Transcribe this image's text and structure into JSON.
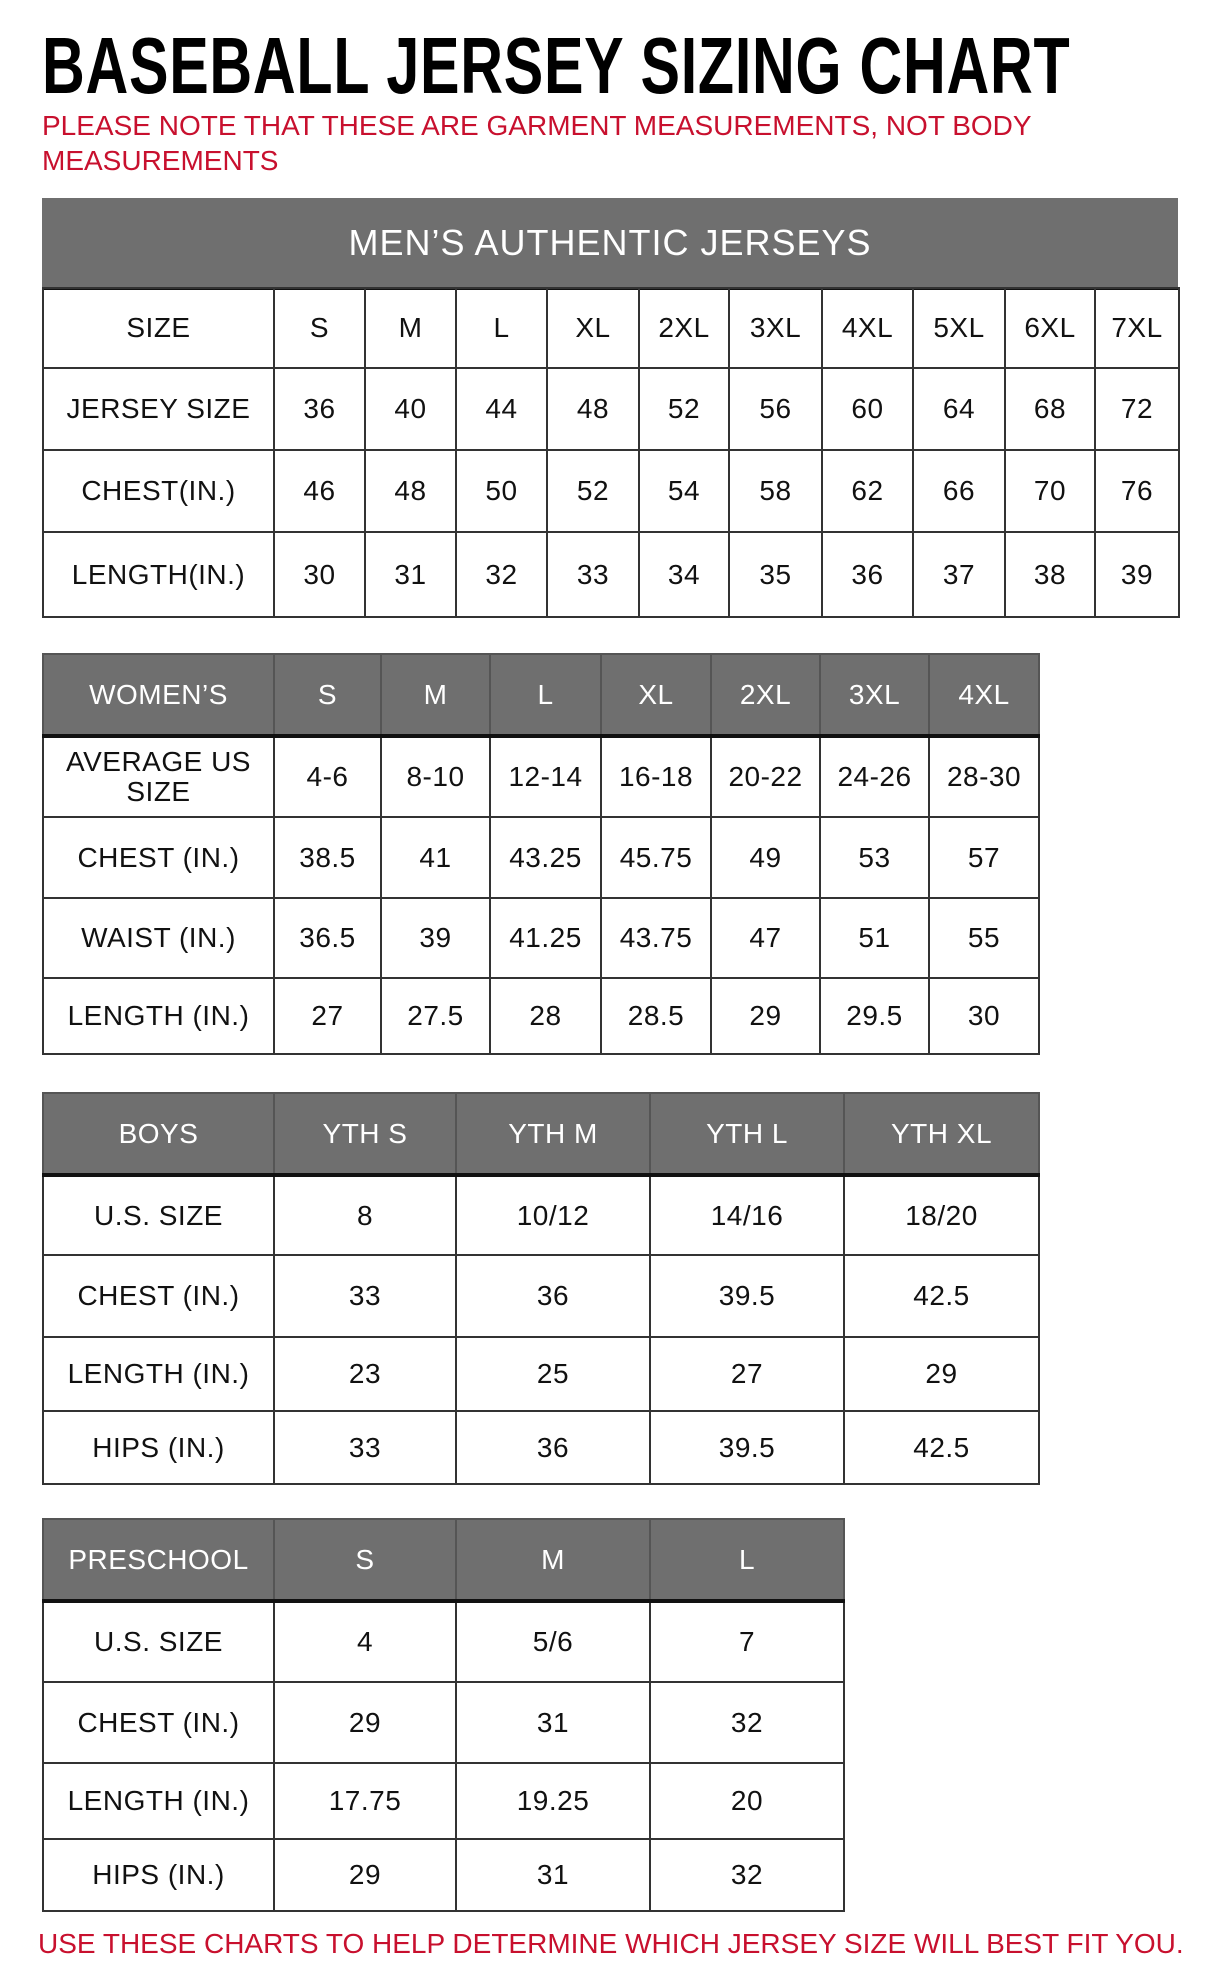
{
  "title": "BASEBALL JERSEY SIZING CHART",
  "note": "PLEASE NOTE THAT THESE ARE GARMENT MEASUREMENTS, NOT BODY MEASUREMENTS",
  "footer": "USE THESE CHARTS TO HELP DETERMINE WHICH JERSEY SIZE WILL BEST FIT YOU.",
  "colors": {
    "header_bg": "#6f6f6f",
    "note_red": "#c8102e"
  },
  "tables": [
    {
      "caption": "MEN’S AUTHENTIC JERSEYS",
      "header_shaded": false,
      "header": [
        "SIZE",
        "S",
        "M",
        "L",
        "XL",
        "2XL",
        "3XL",
        "4XL",
        "5XL",
        "6XL",
        "7XL"
      ],
      "rows": [
        [
          "JERSEY SIZE",
          "36",
          "40",
          "44",
          "48",
          "52",
          "56",
          "60",
          "64",
          "68",
          "72"
        ],
        [
          "CHEST(IN.)",
          "46",
          "48",
          "50",
          "52",
          "54",
          "58",
          "62",
          "66",
          "70",
          "76"
        ],
        [
          "LENGTH(IN.)",
          "30",
          "31",
          "32",
          "33",
          "34",
          "35",
          "36",
          "37",
          "38",
          "39"
        ]
      ]
    },
    {
      "header_shaded": true,
      "header": [
        "WOMEN’S",
        "S",
        "M",
        "L",
        "XL",
        "2XL",
        "3XL",
        "4XL"
      ],
      "rows": [
        [
          "AVERAGE US SIZE",
          "4-6",
          "8-10",
          "12-14",
          "16-18",
          "20-22",
          "24-26",
          "28-30"
        ],
        [
          "CHEST (IN.)",
          "38.5",
          "41",
          "43.25",
          "45.75",
          "49",
          "53",
          "57"
        ],
        [
          "WAIST (IN.)",
          "36.5",
          "39",
          "41.25",
          "43.75",
          "47",
          "51",
          "55"
        ],
        [
          "LENGTH (IN.)",
          "27",
          "27.5",
          "28",
          "28.5",
          "29",
          "29.5",
          "30"
        ]
      ]
    },
    {
      "header_shaded": true,
      "header": [
        "BOYS",
        "YTH S",
        "YTH M",
        "YTH L",
        "YTH XL"
      ],
      "rows": [
        [
          "U.S. SIZE",
          "8",
          "10/12",
          "14/16",
          "18/20"
        ],
        [
          "CHEST (IN.)",
          "33",
          "36",
          "39.5",
          "42.5"
        ],
        [
          "LENGTH (IN.)",
          "23",
          "25",
          "27",
          "29"
        ],
        [
          "HIPS (IN.)",
          "33",
          "36",
          "39.5",
          "42.5"
        ]
      ]
    },
    {
      "header_shaded": true,
      "header": [
        "PRESCHOOL",
        "S",
        "M",
        "L"
      ],
      "rows": [
        [
          "U.S. SIZE",
          "4",
          "5/6",
          "7"
        ],
        [
          "CHEST (IN.)",
          "29",
          "31",
          "32"
        ],
        [
          "LENGTH (IN.)",
          "17.75",
          "19.25",
          "20"
        ],
        [
          "HIPS (IN.)",
          "29",
          "31",
          "32"
        ]
      ]
    }
  ]
}
